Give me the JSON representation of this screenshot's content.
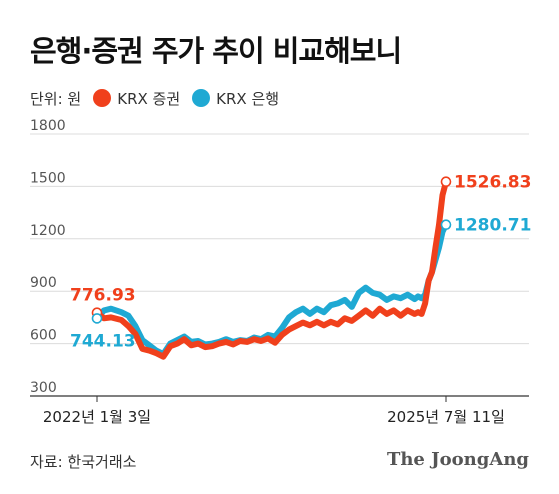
{
  "title": "은행·증권 주가 추이 비교해보니",
  "unit": "단위: 원",
  "source": "자료: 한국거래소",
  "logo": "The JoongAng",
  "colors": {
    "securities": "#f0401c",
    "banks": "#1fa9d3",
    "grid": "#dcdcdc",
    "tick": "#555555"
  },
  "chart_data": {
    "type": "line",
    "title": "은행·증권 주가 추이 비교해보니",
    "xlabel": "",
    "ylabel": "",
    "ylim": [
      300,
      1800
    ],
    "yticks": [
      300,
      600,
      900,
      1200,
      1500,
      1800
    ],
    "x_ticks": [
      {
        "label": "2022년 1월 3일",
        "x": 0
      },
      {
        "label": "2025년 7월 11일",
        "x": 1
      }
    ],
    "grid": true,
    "legend_position": "top-left",
    "series": [
      {
        "name": "KRX 증권",
        "color": "#f0401c",
        "start_label": "776.93",
        "end_label": "1526.83",
        "points": [
          [
            0,
            776.93
          ],
          [
            0.02,
            745
          ],
          [
            0.04,
            750
          ],
          [
            0.07,
            735
          ],
          [
            0.09,
            700
          ],
          [
            0.11,
            655
          ],
          [
            0.13,
            570
          ],
          [
            0.15,
            560
          ],
          [
            0.17,
            545
          ],
          [
            0.19,
            525
          ],
          [
            0.21,
            585
          ],
          [
            0.23,
            600
          ],
          [
            0.25,
            625
          ],
          [
            0.27,
            590
          ],
          [
            0.29,
            600
          ],
          [
            0.31,
            580
          ],
          [
            0.33,
            585
          ],
          [
            0.35,
            600
          ],
          [
            0.37,
            610
          ],
          [
            0.39,
            595
          ],
          [
            0.41,
            615
          ],
          [
            0.43,
            610
          ],
          [
            0.45,
            625
          ],
          [
            0.47,
            615
          ],
          [
            0.49,
            630
          ],
          [
            0.51,
            605
          ],
          [
            0.53,
            650
          ],
          [
            0.55,
            680
          ],
          [
            0.57,
            700
          ],
          [
            0.59,
            720
          ],
          [
            0.61,
            705
          ],
          [
            0.63,
            725
          ],
          [
            0.65,
            705
          ],
          [
            0.67,
            725
          ],
          [
            0.69,
            710
          ],
          [
            0.71,
            745
          ],
          [
            0.73,
            730
          ],
          [
            0.75,
            760
          ],
          [
            0.77,
            790
          ],
          [
            0.79,
            760
          ],
          [
            0.81,
            800
          ],
          [
            0.83,
            770
          ],
          [
            0.85,
            790
          ],
          [
            0.87,
            760
          ],
          [
            0.89,
            790
          ],
          [
            0.91,
            770
          ],
          [
            0.92,
            780
          ],
          [
            0.93,
            770
          ],
          [
            0.94,
            830
          ],
          [
            0.95,
            960
          ],
          [
            0.96,
            1010
          ],
          [
            0.97,
            1150
          ],
          [
            0.98,
            1280
          ],
          [
            0.99,
            1450
          ],
          [
            1,
            1526.83
          ]
        ]
      },
      {
        "name": "KRX 은행",
        "color": "#1fa9d3",
        "start_label": "744.13",
        "end_label": "1280.71",
        "points": [
          [
            0,
            744.13
          ],
          [
            0.02,
            790
          ],
          [
            0.04,
            800
          ],
          [
            0.07,
            780
          ],
          [
            0.09,
            760
          ],
          [
            0.11,
            700
          ],
          [
            0.13,
            620
          ],
          [
            0.15,
            590
          ],
          [
            0.17,
            560
          ],
          [
            0.19,
            540
          ],
          [
            0.21,
            600
          ],
          [
            0.23,
            620
          ],
          [
            0.25,
            640
          ],
          [
            0.27,
            610
          ],
          [
            0.29,
            615
          ],
          [
            0.31,
            595
          ],
          [
            0.33,
            600
          ],
          [
            0.35,
            610
          ],
          [
            0.37,
            625
          ],
          [
            0.39,
            610
          ],
          [
            0.41,
            620
          ],
          [
            0.43,
            615
          ],
          [
            0.45,
            635
          ],
          [
            0.47,
            625
          ],
          [
            0.49,
            650
          ],
          [
            0.51,
            640
          ],
          [
            0.53,
            690
          ],
          [
            0.55,
            750
          ],
          [
            0.57,
            780
          ],
          [
            0.59,
            800
          ],
          [
            0.61,
            770
          ],
          [
            0.63,
            800
          ],
          [
            0.65,
            780
          ],
          [
            0.67,
            820
          ],
          [
            0.69,
            830
          ],
          [
            0.71,
            850
          ],
          [
            0.73,
            810
          ],
          [
            0.75,
            890
          ],
          [
            0.77,
            920
          ],
          [
            0.79,
            890
          ],
          [
            0.81,
            880
          ],
          [
            0.83,
            850
          ],
          [
            0.85,
            870
          ],
          [
            0.87,
            860
          ],
          [
            0.89,
            880
          ],
          [
            0.91,
            855
          ],
          [
            0.92,
            870
          ],
          [
            0.93,
            860
          ],
          [
            0.94,
            880
          ],
          [
            0.95,
            960
          ],
          [
            0.96,
            1010
          ],
          [
            0.97,
            1080
          ],
          [
            0.98,
            1150
          ],
          [
            0.99,
            1240
          ],
          [
            1,
            1280.71
          ]
        ]
      }
    ]
  }
}
